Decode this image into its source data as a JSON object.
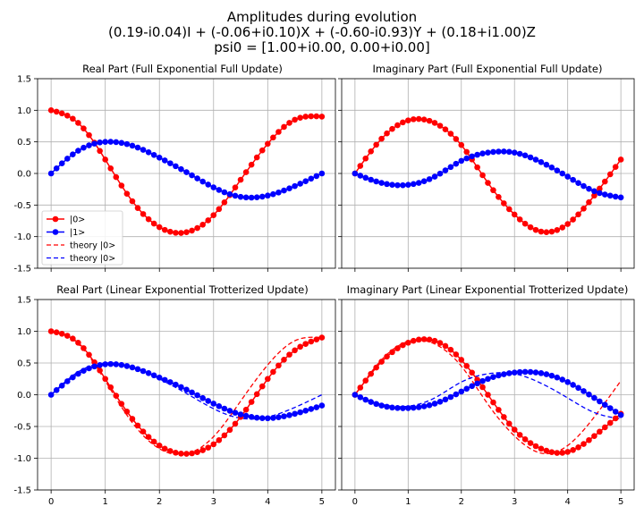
{
  "figure": {
    "title_lines": [
      "Amplitudes during evolution",
      "(0.19-i0.04)I + (-0.06+i0.10)X + (-0.60-i0.93)Y + (0.18+i1.00)Z",
      "psi0 = [1.00+i0.00, 0.00+i0.00]"
    ]
  },
  "chart_data": [
    {
      "type": "line",
      "title": "Real Part (Full Exponential Full Update)",
      "xlim": [
        -0.25,
        5.25
      ],
      "ylim": [
        -1.5,
        1.5
      ],
      "xticks": [
        0,
        1,
        2,
        3,
        4,
        5
      ],
      "yticks": [
        -1.5,
        -1.0,
        -0.5,
        0.0,
        0.5,
        1.0,
        1.5
      ],
      "xticks_labeled": false,
      "yticks_labeled": true,
      "grid": true,
      "legend_placement": "lower-left",
      "series": [
        {
          "name": "|0>",
          "color": "#ff0000",
          "style": "line-marker",
          "x": [
            0,
            0.5,
            1,
            1.5,
            2,
            2.5,
            3,
            3.5,
            4,
            4.5,
            5
          ],
          "y": [
            1.0,
            0.8,
            0.22,
            -0.44,
            -0.85,
            -0.93,
            -0.66,
            -0.1,
            0.47,
            0.85,
            0.9
          ]
        },
        {
          "name": "|1>",
          "color": "#0000ff",
          "style": "line-marker",
          "x": [
            0,
            0.5,
            1,
            1.5,
            2,
            2.5,
            3,
            3.5,
            4,
            4.5,
            5
          ],
          "y": [
            0.0,
            0.36,
            0.5,
            0.44,
            0.25,
            0.02,
            -0.22,
            -0.37,
            -0.35,
            -0.2,
            0.0
          ]
        },
        {
          "name": "theory |0>",
          "color": "#ff0000",
          "style": "dashed",
          "legend_only": true,
          "x": [],
          "y": []
        },
        {
          "name": "theory |0>",
          "color": "#0000ff",
          "style": "dashed",
          "legend_only": true,
          "x": [],
          "y": []
        }
      ]
    },
    {
      "type": "line",
      "title": "Imaginary Part (Full Exponential Full Update)",
      "xlim": [
        -0.25,
        5.25
      ],
      "ylim": [
        -1.5,
        1.5
      ],
      "xticks": [
        0,
        1,
        2,
        3,
        4,
        5
      ],
      "yticks": [
        -1.5,
        -1.0,
        -0.5,
        0.0,
        0.5,
        1.0,
        1.5
      ],
      "xticks_labeled": false,
      "yticks_labeled": false,
      "grid": true,
      "series": [
        {
          "name": "|0>",
          "color": "#ff0000",
          "style": "line-marker",
          "x": [
            0,
            0.5,
            1,
            1.5,
            2,
            2.5,
            3,
            3.5,
            4,
            4.5,
            5
          ],
          "y": [
            0.0,
            0.55,
            0.84,
            0.8,
            0.45,
            -0.15,
            -0.65,
            -0.92,
            -0.8,
            -0.35,
            0.22
          ]
        },
        {
          "name": "|1>",
          "color": "#0000ff",
          "style": "line-marker",
          "x": [
            0,
            0.5,
            1,
            1.5,
            2,
            2.5,
            3,
            3.5,
            4,
            4.5,
            5
          ],
          "y": [
            0.0,
            -0.15,
            -0.18,
            -0.05,
            0.2,
            0.33,
            0.33,
            0.18,
            -0.05,
            -0.28,
            -0.38
          ]
        }
      ]
    },
    {
      "type": "line",
      "title": "Real Part (Linear Exponential Trotterized Update)",
      "xlim": [
        -0.25,
        5.25
      ],
      "ylim": [
        -1.5,
        1.5
      ],
      "xticks": [
        0,
        1,
        2,
        3,
        4,
        5
      ],
      "yticks": [
        -1.5,
        -1.0,
        -0.5,
        0.0,
        0.5,
        1.0,
        1.5
      ],
      "xticks_labeled": true,
      "yticks_labeled": true,
      "grid": true,
      "series": [
        {
          "name": "|0>",
          "color": "#ff0000",
          "style": "line-marker",
          "x": [
            0,
            0.5,
            1,
            1.5,
            2,
            2.5,
            3,
            3.5,
            4,
            4.5,
            5
          ],
          "y": [
            1.0,
            0.82,
            0.25,
            -0.38,
            -0.8,
            -0.93,
            -0.78,
            -0.35,
            0.25,
            0.7,
            0.9
          ]
        },
        {
          "name": "|1>",
          "color": "#0000ff",
          "style": "line-marker",
          "x": [
            0,
            0.5,
            1,
            1.5,
            2,
            2.5,
            3,
            3.5,
            4,
            4.5,
            5
          ],
          "y": [
            0.0,
            0.33,
            0.48,
            0.43,
            0.27,
            0.08,
            -0.14,
            -0.31,
            -0.37,
            -0.3,
            -0.17
          ]
        },
        {
          "name": "theory |0>",
          "color": "#ff0000",
          "style": "dashed",
          "x": [
            0,
            0.5,
            1,
            1.5,
            2,
            2.5,
            3,
            3.5,
            4,
            4.5,
            5
          ],
          "y": [
            1.0,
            0.8,
            0.22,
            -0.44,
            -0.85,
            -0.93,
            -0.66,
            -0.1,
            0.47,
            0.85,
            0.9
          ]
        },
        {
          "name": "theory |0>",
          "color": "#0000ff",
          "style": "dashed",
          "x": [
            0,
            0.5,
            1,
            1.5,
            2,
            2.5,
            3,
            3.5,
            4,
            4.5,
            5
          ],
          "y": [
            0.0,
            0.36,
            0.5,
            0.44,
            0.25,
            0.02,
            -0.22,
            -0.37,
            -0.35,
            -0.2,
            0.0
          ]
        }
      ]
    },
    {
      "type": "line",
      "title": "Imaginary Part (Linear Exponential Trotterized Update)",
      "xlim": [
        -0.25,
        5.25
      ],
      "ylim": [
        -1.5,
        1.5
      ],
      "xticks": [
        0,
        1,
        2,
        3,
        4,
        5
      ],
      "yticks": [
        -1.5,
        -1.0,
        -0.5,
        0.0,
        0.5,
        1.0,
        1.5
      ],
      "xticks_labeled": true,
      "yticks_labeled": false,
      "grid": true,
      "series": [
        {
          "name": "|0>",
          "color": "#ff0000",
          "style": "line-marker",
          "x": [
            0,
            0.5,
            1,
            1.5,
            2,
            2.5,
            3,
            3.5,
            4,
            4.5,
            5
          ],
          "y": [
            0.0,
            0.52,
            0.82,
            0.85,
            0.55,
            0.0,
            -0.55,
            -0.85,
            -0.9,
            -0.65,
            -0.3
          ]
        },
        {
          "name": "|1>",
          "color": "#0000ff",
          "style": "line-marker",
          "x": [
            0,
            0.5,
            1,
            1.5,
            2,
            2.5,
            3,
            3.5,
            4,
            4.5,
            5
          ],
          "y": [
            0.0,
            -0.17,
            -0.21,
            -0.14,
            0.05,
            0.25,
            0.35,
            0.34,
            0.2,
            -0.05,
            -0.32
          ]
        },
        {
          "name": "theory |0>",
          "color": "#ff0000",
          "style": "dashed",
          "x": [
            0,
            0.5,
            1,
            1.5,
            2,
            2.5,
            3,
            3.5,
            4,
            4.5,
            5
          ],
          "y": [
            0.0,
            0.55,
            0.84,
            0.8,
            0.45,
            -0.15,
            -0.65,
            -0.92,
            -0.8,
            -0.35,
            0.22
          ]
        },
        {
          "name": "theory |0>",
          "color": "#0000ff",
          "style": "dashed",
          "x": [
            0,
            0.5,
            1,
            1.5,
            2,
            2.5,
            3,
            3.5,
            4,
            4.5,
            5
          ],
          "y": [
            0.0,
            -0.15,
            -0.18,
            -0.05,
            0.2,
            0.33,
            0.33,
            0.18,
            -0.05,
            -0.28,
            -0.38
          ]
        }
      ]
    }
  ]
}
